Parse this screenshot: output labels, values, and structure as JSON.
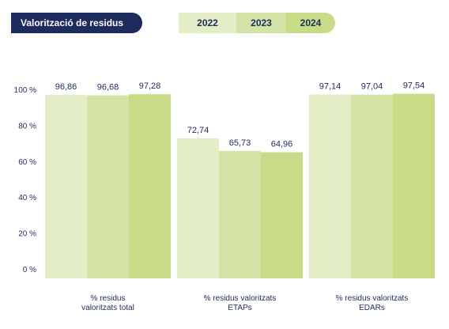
{
  "header": {
    "title": "Valorització de residus",
    "years": [
      "2022",
      "2023",
      "2024"
    ]
  },
  "colors": {
    "navy": "#1e2b5e",
    "year_2022": "#e3edc6",
    "year_2023": "#d4e4a6",
    "year_2024": "#c8dc88"
  },
  "chart_data": {
    "type": "bar",
    "categories": [
      "% residus valoritzats total",
      "% residus valoritzats ETAPs",
      "% residus valoritzats EDARs"
    ],
    "category_lines": [
      [
        "% residus",
        "valoritzats total"
      ],
      [
        "% residus valoritzats",
        "ETAPs"
      ],
      [
        "% residus valoritzats",
        "EDARs"
      ]
    ],
    "series": [
      {
        "name": "2022",
        "values": [
          96.86,
          72.74,
          97.14
        ],
        "labels": [
          "96,86",
          "72,74",
          "97,14"
        ]
      },
      {
        "name": "2023",
        "values": [
          96.68,
          65.73,
          97.04
        ],
        "labels": [
          "96,68",
          "65,73",
          "97,04"
        ]
      },
      {
        "name": "2024",
        "values": [
          97.28,
          64.96,
          97.54
        ],
        "labels": [
          "97,28",
          "64,96",
          "97,54"
        ]
      }
    ],
    "y_ticks": [
      0,
      20,
      40,
      60,
      80,
      100
    ],
    "y_tick_labels": [
      "0 %",
      "20 %",
      "40 %",
      "60 %",
      "80 %",
      "100 %"
    ],
    "ylim": [
      0,
      100
    ],
    "grid": false
  }
}
